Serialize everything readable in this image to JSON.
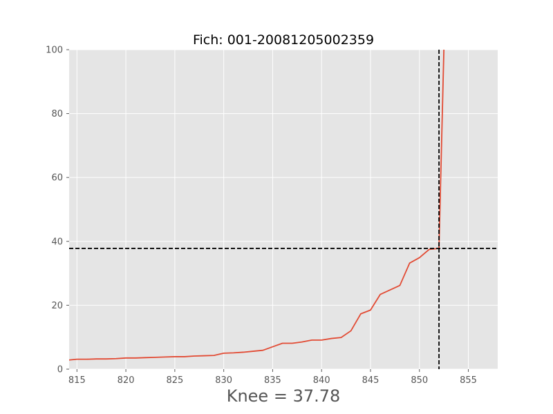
{
  "chart_data": {
    "type": "line",
    "title": "Fich: 001-20081205002359",
    "xlabel": "Knee = 37.78",
    "ylabel": "",
    "xlim": [
      814.2,
      858.0
    ],
    "ylim": [
      0,
      100
    ],
    "xticks": [
      815,
      820,
      825,
      830,
      835,
      840,
      845,
      850,
      855
    ],
    "yticks": [
      0,
      20,
      40,
      60,
      80,
      100
    ],
    "grid": true,
    "knee": {
      "x": 852,
      "y": 37.78
    },
    "colors": {
      "background": "#e5e5e5",
      "grid": "#ffffff",
      "line": "#e24a33",
      "knee_line": "#000000"
    },
    "series": [
      {
        "x": [
          814,
          815,
          816,
          817,
          818,
          819,
          820,
          821,
          822,
          823,
          824,
          825,
          826,
          827,
          828,
          829,
          830,
          831,
          832,
          833,
          834,
          835,
          836,
          837,
          838,
          839,
          840,
          841,
          842,
          843,
          844,
          845,
          846,
          847,
          848,
          849,
          850,
          851,
          852,
          852.5
        ],
        "y": [
          2.8,
          3.1,
          3.1,
          3.2,
          3.2,
          3.3,
          3.5,
          3.5,
          3.6,
          3.7,
          3.8,
          3.9,
          3.9,
          4.1,
          4.2,
          4.3,
          5.0,
          5.1,
          5.3,
          5.6,
          5.9,
          7.0,
          8.1,
          8.1,
          8.5,
          9.1,
          9.1,
          9.6,
          9.9,
          12.0,
          17.3,
          18.5,
          23.4,
          24.8,
          26.2,
          33.2,
          34.9,
          37.5,
          37.8,
          100
        ]
      }
    ]
  }
}
